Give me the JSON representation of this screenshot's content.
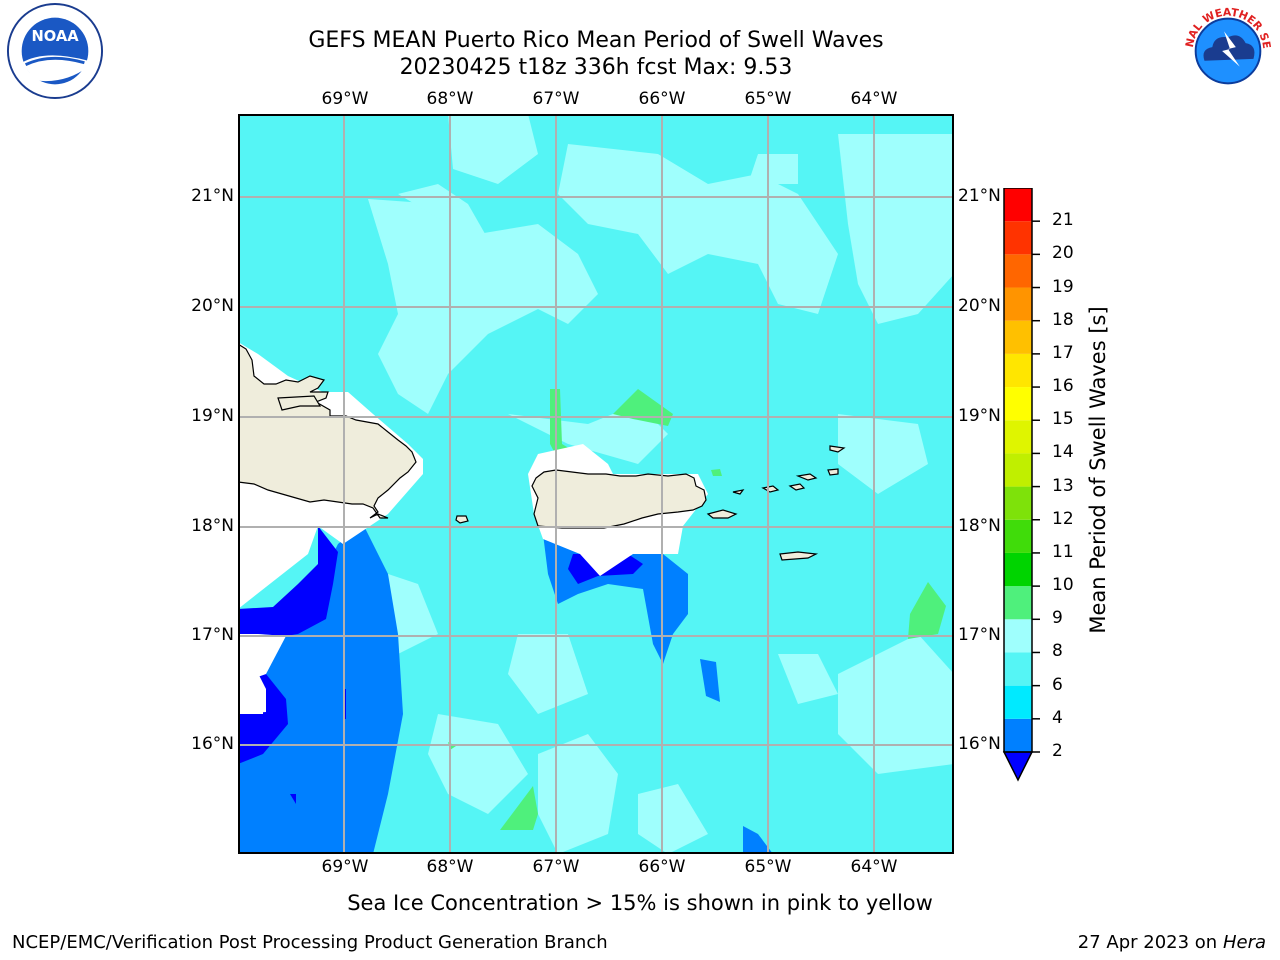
{
  "title_line1": "GEFS MEAN Puerto Rico Mean Period of Swell Waves",
  "title_line2": "20230425 t18z 336h fcst   Max: 9.53",
  "map": {
    "lon_labels": [
      "69°W",
      "68°W",
      "67°W",
      "66°W",
      "65°W",
      "64°W"
    ],
    "lat_labels": [
      "21°N",
      "20°N",
      "19°N",
      "18°N",
      "17°N",
      "16°N"
    ],
    "lon_range": [
      -70.0,
      -63.25
    ],
    "lat_range": [
      15.0,
      21.75
    ],
    "gridlines": true,
    "land_color": "#efeddc",
    "ocean_base_color": "#55f5f5"
  },
  "colorbar": {
    "title": "Mean Period of Swell Waves [s]",
    "tick_labels": [
      "2",
      "4",
      "6",
      "8",
      "9",
      "10",
      "11",
      "12",
      "13",
      "14",
      "15",
      "16",
      "17",
      "18",
      "19",
      "20",
      "21"
    ],
    "colors": [
      "#0080ff",
      "#00eaff",
      "#55f5f5",
      "#9ffffd",
      "#4ff07c",
      "#00d400",
      "#40dc0a",
      "#7ee20a",
      "#c0ef00",
      "#dff500",
      "#ffff00",
      "#ffe600",
      "#ffc000",
      "#ff9400",
      "#ff6600",
      "#ff3300",
      "#ff0000"
    ],
    "under_color": "#0000ff"
  },
  "note": "Sea Ice Concentration > 15% is shown in pink to yellow",
  "footer_left": "NCEP/EMC/Verification Post Processing Product Generation Branch",
  "footer_date": "27 Apr 2023 on ",
  "footer_host": "Hera",
  "logos": {
    "left": "noaa-logo",
    "left_text": "NOAA",
    "right": "nws-logo",
    "right_text": "NATIONAL WEATHER SERVICE"
  }
}
